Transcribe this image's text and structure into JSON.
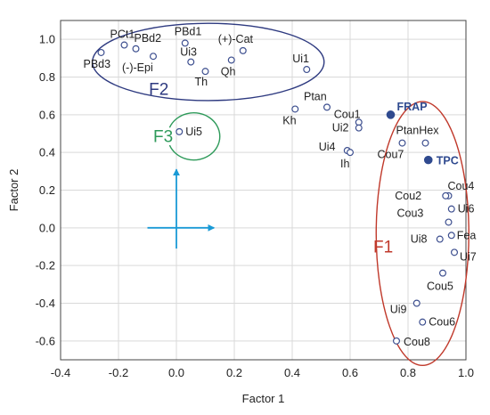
{
  "chart_data": {
    "type": "scatter",
    "xlabel": "Factor 1",
    "ylabel": "Factor 2",
    "xlim": [
      -0.4,
      1.0
    ],
    "ylim": [
      -0.7,
      1.1
    ],
    "xticks": [
      -0.4,
      -0.2,
      0.0,
      0.2,
      0.4,
      0.6,
      0.8,
      1.0
    ],
    "yticks": [
      -0.6,
      -0.4,
      -0.2,
      0.0,
      0.2,
      0.4,
      0.6,
      0.8,
      1.0
    ],
    "xtick_labels": [
      "-0.4",
      "-0.2",
      "0.0",
      "0.2",
      "0.4",
      "0.6",
      "0.8",
      "1.0"
    ],
    "ytick_labels": [
      "-0.6",
      "-0.4",
      "-0.2",
      "0.0",
      "0.2",
      "0.4",
      "0.6",
      "0.8",
      "1.0"
    ],
    "grid": true,
    "colors": {
      "open_marker": "#3d4f8f",
      "filled_marker": "#2f4a8f",
      "f1": "#c0392b",
      "f2": "#2e3a80",
      "f3": "#2e9a5a",
      "arrow": "#1a9ad6",
      "grid": "#d9d9d9"
    },
    "points": [
      {
        "label": "PCt1",
        "x": -0.18,
        "y": 0.97,
        "filled": false
      },
      {
        "label": "PBd3",
        "x": -0.26,
        "y": 0.93,
        "filled": false
      },
      {
        "label": "PBd2",
        "x": -0.14,
        "y": 0.95,
        "filled": false
      },
      {
        "label": "PBd1",
        "x": 0.03,
        "y": 0.98,
        "filled": false
      },
      {
        "label": "(-)-Epi",
        "x": -0.08,
        "y": 0.91,
        "filled": false
      },
      {
        "label": "Ui3",
        "x": 0.05,
        "y": 0.88,
        "filled": false
      },
      {
        "label": "Th",
        "x": 0.1,
        "y": 0.83,
        "filled": false
      },
      {
        "label": "(+)-Cat",
        "x": 0.23,
        "y": 0.94,
        "filled": false
      },
      {
        "label": "Qh",
        "x": 0.19,
        "y": 0.89,
        "filled": false
      },
      {
        "label": "Ui1",
        "x": 0.45,
        "y": 0.84,
        "filled": false
      },
      {
        "label": "Ui5",
        "x": 0.01,
        "y": 0.51,
        "filled": false
      },
      {
        "label": "Ptan",
        "x": 0.52,
        "y": 0.64,
        "filled": false
      },
      {
        "label": "Kh",
        "x": 0.41,
        "y": 0.63,
        "filled": false
      },
      {
        "label": "Cou1",
        "x": 0.63,
        "y": 0.56,
        "filled": false
      },
      {
        "label": "Ui2",
        "x": 0.63,
        "y": 0.53,
        "filled": false
      },
      {
        "label": "Ui4",
        "x": 0.59,
        "y": 0.41,
        "filled": false
      },
      {
        "label": "Ih",
        "x": 0.6,
        "y": 0.4,
        "filled": false
      },
      {
        "label": "FRAP",
        "x": 0.74,
        "y": 0.6,
        "filled": true
      },
      {
        "label": "PtanHex",
        "x": 0.86,
        "y": 0.45,
        "filled": false
      },
      {
        "label": "Cou7",
        "x": 0.78,
        "y": 0.45,
        "filled": false
      },
      {
        "label": "TPC",
        "x": 0.87,
        "y": 0.36,
        "filled": true
      },
      {
        "label": "Cou4",
        "x": 0.94,
        "y": 0.17,
        "filled": false
      },
      {
        "label": "Cou2",
        "x": 0.93,
        "y": 0.17,
        "filled": false
      },
      {
        "label": "Ui6",
        "x": 0.95,
        "y": 0.1,
        "filled": false
      },
      {
        "label": "Cou3",
        "x": 0.94,
        "y": 0.03,
        "filled": false
      },
      {
        "label": "Fea",
        "x": 0.95,
        "y": -0.04,
        "filled": false
      },
      {
        "label": "Ui8",
        "x": 0.91,
        "y": -0.06,
        "filled": false
      },
      {
        "label": "Ui7",
        "x": 0.96,
        "y": -0.13,
        "filled": false
      },
      {
        "label": "Cou5",
        "x": 0.92,
        "y": -0.24,
        "filled": false
      },
      {
        "label": "Ui9",
        "x": 0.83,
        "y": -0.4,
        "filled": false
      },
      {
        "label": "Cou6",
        "x": 0.85,
        "y": -0.5,
        "filled": false
      },
      {
        "label": "Cou8",
        "x": 0.76,
        "y": -0.6,
        "filled": false
      }
    ],
    "annotations": [
      {
        "label": "F1",
        "shape": "ellipse",
        "color": "#c0392b",
        "center": [
          0.85,
          -0.03
        ],
        "radii": [
          0.16,
          0.7
        ],
        "text_at": [
          0.68,
          -0.13
        ]
      },
      {
        "label": "F2",
        "shape": "ellipse",
        "color": "#2e3a80",
        "center": [
          0.11,
          0.88
        ],
        "radii": [
          0.4,
          0.205
        ],
        "text_at": [
          -0.095,
          0.705
        ]
      },
      {
        "label": "F3",
        "shape": "arc",
        "color": "#2e9a5a",
        "center": [
          0.06,
          0.485
        ],
        "radii": [
          0.09,
          0.125
        ],
        "text_at": [
          -0.08,
          0.455
        ]
      }
    ]
  }
}
